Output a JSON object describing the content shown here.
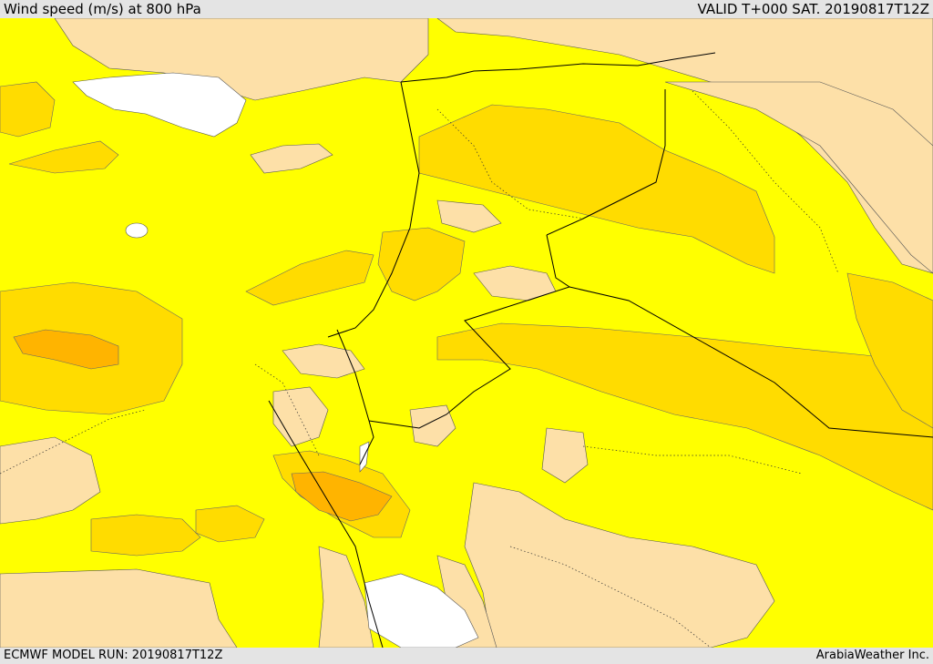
{
  "header": {
    "title": "Wind speed (m/s) at 800 hPa",
    "valid": "VALID T+000 SAT. 20190817T12Z"
  },
  "footer": {
    "model_run": "ECMWF MODEL RUN: 20190817T12Z",
    "credit": "ArabiaWeather Inc."
  },
  "colors": {
    "speed_low": "#fde0a8",
    "speed_mid": "#ffff00",
    "speed_high": "#ffdc00",
    "speed_higher": "#ffb400",
    "water": "#ffffff",
    "border": "#000000"
  }
}
